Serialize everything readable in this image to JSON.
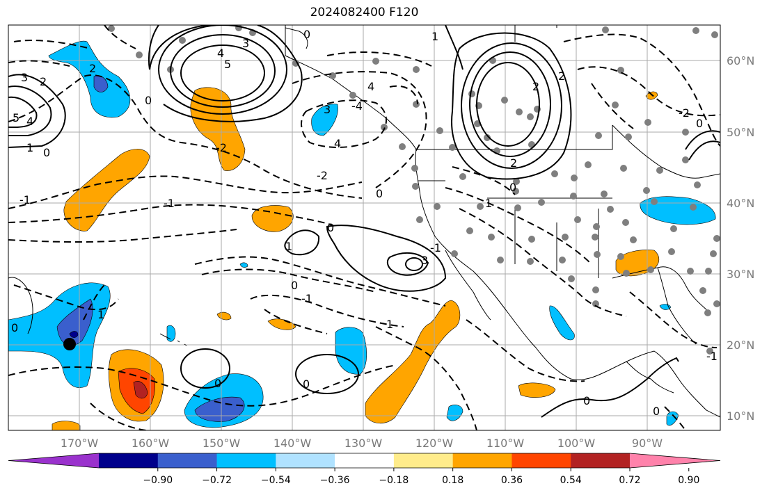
{
  "title": "2024082400 F120",
  "lat_labels": [
    "60°N",
    "50°N",
    "40°N",
    "30°N",
    "20°N",
    "10°N"
  ],
  "lon_labels": [
    "170°W",
    "160°W",
    "150°W",
    "140°W",
    "130°W",
    "120°W",
    "110°W",
    "100°W",
    "90°W"
  ],
  "colorbar": {
    "ticks": [
      "−0.90",
      "−0.72",
      "−0.54",
      "−0.36",
      "−0.18",
      "0.18",
      "0.36",
      "0.54",
      "0.72",
      "0.90"
    ],
    "colors": [
      "#9a32cd",
      "#00008b",
      "#3a5fcd",
      "#00bfff",
      "#b0e2ff",
      "#ffffff",
      "#ffec8b",
      "#ffa500",
      "#ff4500",
      "#b22222",
      "#ff82ab"
    ]
  },
  "contour_labels": [
    "3",
    "4",
    "5",
    "2",
    "1",
    "0",
    "2",
    "3",
    "5",
    "4",
    "-1",
    "0",
    "4",
    "3",
    "4",
    "-2",
    "-1",
    "-4",
    "-2",
    "0",
    "1",
    "3",
    "2",
    "1",
    "0",
    "-1",
    "2",
    "1",
    "0",
    "2",
    "-2",
    "0",
    "1",
    "0",
    "0",
    "-1",
    "0",
    "1",
    "0",
    "0",
    "-1",
    "0",
    "0"
  ]
}
